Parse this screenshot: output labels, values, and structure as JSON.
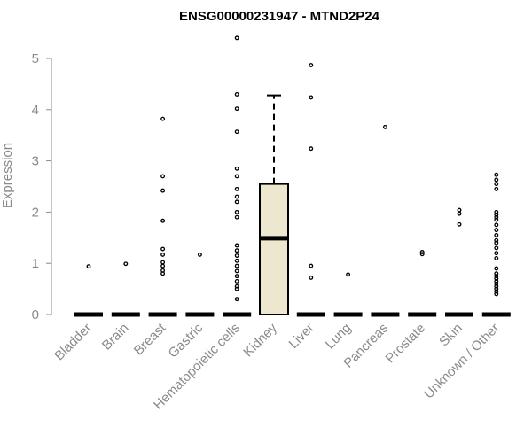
{
  "chart_data": {
    "type": "box",
    "title": "ENSG00000231947 - MTND2P24",
    "xlabel": "",
    "ylabel": "Expression",
    "ylim": [
      0,
      5.5
    ],
    "yticks": [
      0,
      1,
      2,
      3,
      4,
      5
    ],
    "grid": false,
    "legend": "none",
    "box_color": "#ede7cf",
    "categories": [
      "Bladder",
      "Brain",
      "Breast",
      "Gastric",
      "Hematopoietic cells",
      "Kidney",
      "Liver",
      "Lung",
      "Pancreas",
      "Prostate",
      "Skin",
      "Unknown / Other"
    ],
    "boxes": [
      {
        "category": "Bladder",
        "q1": 0,
        "median": 0,
        "q3": 0,
        "whisker_low": 0,
        "whisker_high": 0,
        "outliers": [
          0.94
        ]
      },
      {
        "category": "Brain",
        "q1": 0,
        "median": 0,
        "q3": 0,
        "whisker_low": 0,
        "whisker_high": 0,
        "outliers": [
          0.99
        ]
      },
      {
        "category": "Breast",
        "q1": 0,
        "median": 0,
        "q3": 0,
        "whisker_low": 0,
        "whisker_high": 0,
        "outliers": [
          0.8,
          0.86,
          0.95,
          1.02,
          1.17,
          1.28,
          1.83,
          2.42,
          2.7,
          3.82
        ]
      },
      {
        "category": "Gastric",
        "q1": 0,
        "median": 0,
        "q3": 0,
        "whisker_low": 0,
        "whisker_high": 0,
        "outliers": [
          1.17
        ]
      },
      {
        "category": "Hematopoietic cells",
        "q1": 0,
        "median": 0,
        "q3": 0,
        "whisker_low": 0,
        "whisker_high": 0,
        "outliers": [
          0.3,
          0.5,
          0.55,
          0.65,
          0.75,
          0.85,
          0.95,
          1.05,
          1.15,
          1.25,
          1.35,
          1.9,
          2.0,
          2.2,
          2.3,
          2.45,
          2.7,
          2.85,
          3.57,
          4.02,
          4.3,
          5.4
        ]
      },
      {
        "category": "Kidney",
        "q1": 0,
        "median": 1.49,
        "q3": 2.55,
        "whisker_low": 0,
        "whisker_high": 4.28,
        "outliers": []
      },
      {
        "category": "Liver",
        "q1": 0,
        "median": 0,
        "q3": 0,
        "whisker_low": 0,
        "whisker_high": 0,
        "outliers": [
          0.72,
          0.95,
          3.24,
          4.24,
          4.87
        ]
      },
      {
        "category": "Lung",
        "q1": 0,
        "median": 0,
        "q3": 0,
        "whisker_low": 0,
        "whisker_high": 0,
        "outliers": [
          0.78
        ]
      },
      {
        "category": "Pancreas",
        "q1": 0,
        "median": 0,
        "q3": 0,
        "whisker_low": 0,
        "whisker_high": 0,
        "outliers": [
          3.66
        ]
      },
      {
        "category": "Prostate",
        "q1": 0,
        "median": 0,
        "q3": 0,
        "whisker_low": 0,
        "whisker_high": 0,
        "outliers": [
          1.18,
          1.22
        ]
      },
      {
        "category": "Skin",
        "q1": 0,
        "median": 0,
        "q3": 0,
        "whisker_low": 0,
        "whisker_high": 0,
        "outliers": [
          1.76,
          1.97,
          2.04
        ]
      },
      {
        "category": "Unknown / Other",
        "q1": 0,
        "median": 0,
        "q3": 0,
        "whisker_low": 0,
        "whisker_high": 0,
        "outliers": [
          0.4,
          0.45,
          0.5,
          0.55,
          0.6,
          0.65,
          0.7,
          0.75,
          0.8,
          0.9,
          1.1,
          1.2,
          1.3,
          1.4,
          1.45,
          1.55,
          1.65,
          1.75,
          1.85,
          1.9,
          1.95,
          2.0,
          2.45,
          2.55,
          2.63,
          2.73
        ]
      }
    ]
  }
}
